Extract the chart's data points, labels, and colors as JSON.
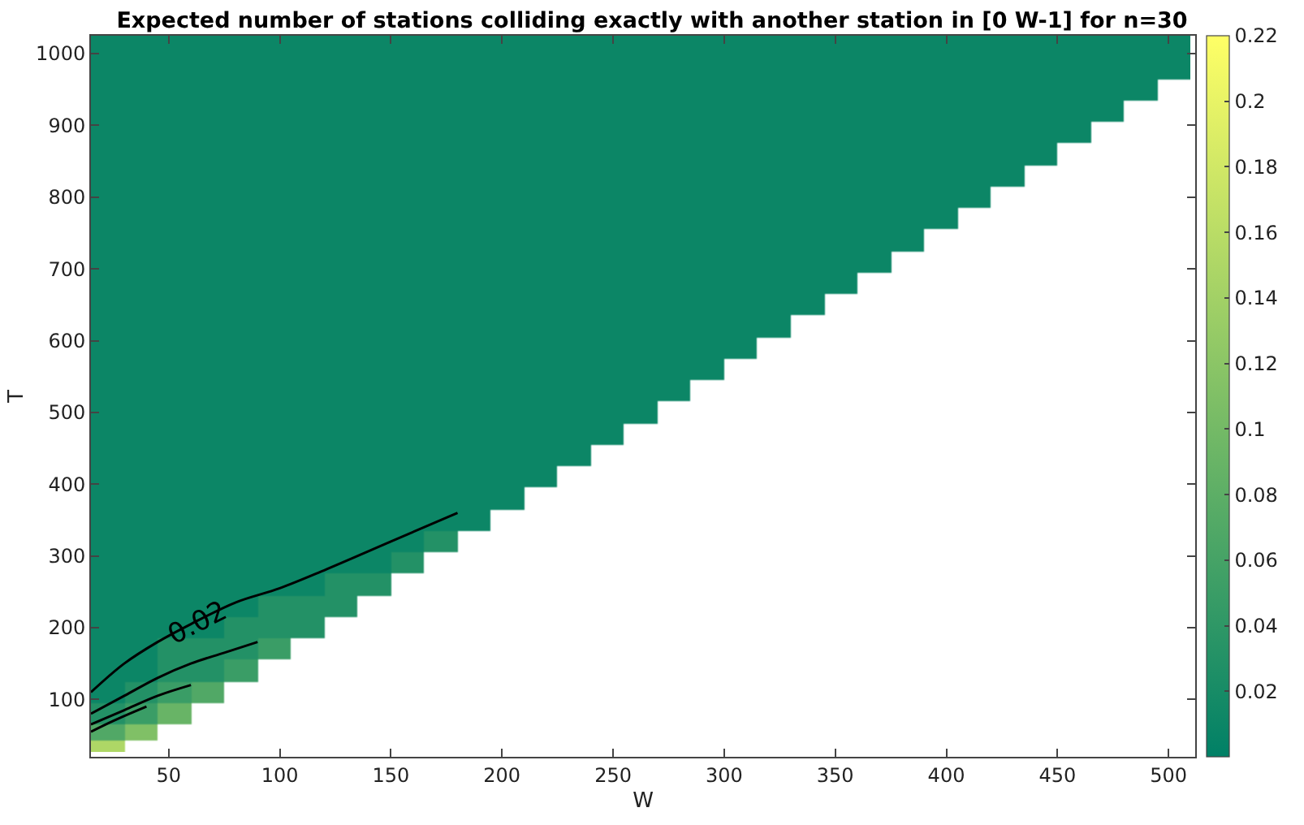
{
  "chart_data": {
    "type": "heatmap",
    "title": "Expected number of stations colliding exactly with another station in [0 W-1] for n=30",
    "xlabel": "W",
    "ylabel": "T",
    "x": [
      22.5,
      37.5,
      52.5,
      67.5,
      82.5,
      97.5,
      112.5,
      127.5,
      142.5,
      157.5,
      172.5,
      187.5,
      202.5,
      217.5,
      232.5,
      247.5,
      262.5,
      277.5,
      292.5,
      307.5,
      322.5,
      337.5,
      352.5,
      367.5,
      382.5,
      397.5,
      412.5,
      427.5,
      442.5,
      457.5,
      472.5,
      487.5,
      502.5
    ],
    "y": [
      1010,
      980,
      950,
      920,
      890,
      860,
      830,
      800,
      770,
      740,
      710,
      680,
      650,
      620,
      590,
      560,
      530,
      500,
      470,
      440,
      410,
      380,
      350,
      320,
      290,
      260,
      230,
      200,
      170,
      140,
      110,
      80,
      50,
      35
    ],
    "cells": [
      [
        0.01,
        0.01,
        0.01,
        0.01,
        0.01,
        0.01,
        0.01,
        0.01,
        0.01,
        0.01,
        0.01,
        0.01,
        0.01,
        0.01,
        0.01,
        0.01,
        0.01,
        0.01,
        0.01,
        0.01,
        0.01,
        0.01,
        0.01,
        0.01,
        0.01,
        0.01,
        0.01,
        0.01,
        0.01,
        0.01,
        0.01,
        0.01,
        0.01
      ],
      [
        0.01,
        0.01,
        0.01,
        0.01,
        0.01,
        0.01,
        0.01,
        0.01,
        0.01,
        0.01,
        0.01,
        0.01,
        0.01,
        0.01,
        0.01,
        0.01,
        0.01,
        0.01,
        0.01,
        0.01,
        0.01,
        0.01,
        0.01,
        0.01,
        0.01,
        0.01,
        0.01,
        0.01,
        0.01,
        0.01,
        0.01,
        0.01,
        0.01
      ],
      [
        0.01,
        0.01,
        0.01,
        0.01,
        0.01,
        0.01,
        0.01,
        0.01,
        0.01,
        0.01,
        0.01,
        0.01,
        0.01,
        0.01,
        0.01,
        0.01,
        0.01,
        0.01,
        0.01,
        0.01,
        0.01,
        0.01,
        0.01,
        0.01,
        0.01,
        0.01,
        0.01,
        0.01,
        0.01,
        0.01,
        0.01,
        0.01,
        null
      ],
      [
        0.01,
        0.01,
        0.01,
        0.01,
        0.01,
        0.01,
        0.01,
        0.01,
        0.01,
        0.01,
        0.01,
        0.01,
        0.01,
        0.01,
        0.01,
        0.01,
        0.01,
        0.01,
        0.01,
        0.01,
        0.01,
        0.01,
        0.01,
        0.01,
        0.01,
        0.01,
        0.01,
        0.01,
        0.01,
        0.01,
        0.01,
        null,
        null
      ],
      [
        0.01,
        0.01,
        0.01,
        0.01,
        0.01,
        0.01,
        0.01,
        0.01,
        0.01,
        0.01,
        0.01,
        0.01,
        0.01,
        0.01,
        0.01,
        0.01,
        0.01,
        0.01,
        0.01,
        0.01,
        0.01,
        0.01,
        0.01,
        0.01,
        0.01,
        0.01,
        0.01,
        0.01,
        0.01,
        0.01,
        null,
        null,
        null
      ],
      [
        0.01,
        0.01,
        0.01,
        0.01,
        0.01,
        0.01,
        0.01,
        0.01,
        0.01,
        0.01,
        0.01,
        0.01,
        0.01,
        0.01,
        0.01,
        0.01,
        0.01,
        0.01,
        0.01,
        0.01,
        0.01,
        0.01,
        0.01,
        0.01,
        0.01,
        0.01,
        0.01,
        0.01,
        0.01,
        null,
        null,
        null,
        null
      ],
      [
        0.01,
        0.01,
        0.01,
        0.01,
        0.01,
        0.01,
        0.01,
        0.01,
        0.01,
        0.01,
        0.01,
        0.01,
        0.01,
        0.01,
        0.01,
        0.01,
        0.01,
        0.01,
        0.01,
        0.01,
        0.01,
        0.01,
        0.01,
        0.01,
        0.01,
        0.01,
        0.01,
        0.01,
        null,
        null,
        null,
        null,
        null
      ],
      [
        0.01,
        0.01,
        0.01,
        0.01,
        0.01,
        0.01,
        0.01,
        0.01,
        0.01,
        0.01,
        0.01,
        0.01,
        0.01,
        0.01,
        0.01,
        0.01,
        0.01,
        0.01,
        0.01,
        0.01,
        0.01,
        0.01,
        0.01,
        0.01,
        0.01,
        0.01,
        0.01,
        null,
        null,
        null,
        null,
        null,
        null
      ],
      [
        0.01,
        0.01,
        0.01,
        0.01,
        0.01,
        0.01,
        0.01,
        0.01,
        0.01,
        0.01,
        0.01,
        0.01,
        0.01,
        0.01,
        0.01,
        0.01,
        0.01,
        0.01,
        0.01,
        0.01,
        0.01,
        0.01,
        0.01,
        0.01,
        0.01,
        0.01,
        null,
        null,
        null,
        null,
        null,
        null,
        null
      ],
      [
        0.01,
        0.01,
        0.01,
        0.01,
        0.01,
        0.01,
        0.01,
        0.01,
        0.01,
        0.01,
        0.01,
        0.01,
        0.01,
        0.01,
        0.01,
        0.01,
        0.01,
        0.01,
        0.01,
        0.01,
        0.01,
        0.01,
        0.01,
        0.01,
        0.01,
        null,
        null,
        null,
        null,
        null,
        null,
        null,
        null
      ],
      [
        0.01,
        0.01,
        0.01,
        0.01,
        0.01,
        0.01,
        0.01,
        0.01,
        0.01,
        0.01,
        0.01,
        0.01,
        0.01,
        0.01,
        0.01,
        0.01,
        0.01,
        0.01,
        0.01,
        0.01,
        0.01,
        0.01,
        0.01,
        0.01,
        null,
        null,
        null,
        null,
        null,
        null,
        null,
        null,
        null
      ],
      [
        0.01,
        0.01,
        0.01,
        0.01,
        0.01,
        0.01,
        0.01,
        0.01,
        0.01,
        0.01,
        0.01,
        0.01,
        0.01,
        0.01,
        0.01,
        0.01,
        0.01,
        0.01,
        0.01,
        0.01,
        0.01,
        0.01,
        0.01,
        null,
        null,
        null,
        null,
        null,
        null,
        null,
        null,
        null,
        null
      ],
      [
        0.01,
        0.01,
        0.01,
        0.01,
        0.01,
        0.01,
        0.01,
        0.01,
        0.01,
        0.01,
        0.01,
        0.01,
        0.01,
        0.01,
        0.01,
        0.01,
        0.01,
        0.01,
        0.01,
        0.01,
        0.01,
        0.01,
        null,
        null,
        null,
        null,
        null,
        null,
        null,
        null,
        null,
        null,
        null
      ],
      [
        0.01,
        0.01,
        0.01,
        0.01,
        0.01,
        0.01,
        0.01,
        0.01,
        0.01,
        0.01,
        0.01,
        0.01,
        0.01,
        0.01,
        0.01,
        0.01,
        0.01,
        0.01,
        0.01,
        0.01,
        0.01,
        null,
        null,
        null,
        null,
        null,
        null,
        null,
        null,
        null,
        null,
        null,
        null
      ],
      [
        0.01,
        0.01,
        0.01,
        0.01,
        0.01,
        0.01,
        0.01,
        0.01,
        0.01,
        0.01,
        0.01,
        0.01,
        0.01,
        0.01,
        0.01,
        0.01,
        0.01,
        0.01,
        0.01,
        0.01,
        null,
        null,
        null,
        null,
        null,
        null,
        null,
        null,
        null,
        null,
        null,
        null,
        null
      ],
      [
        0.01,
        0.01,
        0.01,
        0.01,
        0.01,
        0.01,
        0.01,
        0.01,
        0.01,
        0.01,
        0.01,
        0.01,
        0.01,
        0.01,
        0.01,
        0.01,
        0.01,
        0.01,
        0.01,
        null,
        null,
        null,
        null,
        null,
        null,
        null,
        null,
        null,
        null,
        null,
        null,
        null,
        null
      ],
      [
        0.01,
        0.01,
        0.01,
        0.01,
        0.01,
        0.01,
        0.01,
        0.01,
        0.01,
        0.01,
        0.01,
        0.01,
        0.01,
        0.01,
        0.01,
        0.01,
        0.01,
        0.01,
        null,
        null,
        null,
        null,
        null,
        null,
        null,
        null,
        null,
        null,
        null,
        null,
        null,
        null,
        null
      ],
      [
        0.01,
        0.01,
        0.01,
        0.01,
        0.01,
        0.01,
        0.01,
        0.01,
        0.01,
        0.01,
        0.01,
        0.01,
        0.01,
        0.01,
        0.01,
        0.01,
        0.01,
        null,
        null,
        null,
        null,
        null,
        null,
        null,
        null,
        null,
        null,
        null,
        null,
        null,
        null,
        null,
        null
      ],
      [
        0.01,
        0.01,
        0.01,
        0.01,
        0.01,
        0.01,
        0.01,
        0.01,
        0.01,
        0.01,
        0.01,
        0.01,
        0.01,
        0.01,
        0.01,
        0.01,
        null,
        null,
        null,
        null,
        null,
        null,
        null,
        null,
        null,
        null,
        null,
        null,
        null,
        null,
        null,
        null,
        null
      ],
      [
        0.01,
        0.01,
        0.01,
        0.01,
        0.01,
        0.01,
        0.01,
        0.01,
        0.01,
        0.01,
        0.01,
        0.01,
        0.01,
        0.01,
        0.01,
        null,
        null,
        null,
        null,
        null,
        null,
        null,
        null,
        null,
        null,
        null,
        null,
        null,
        null,
        null,
        null,
        null,
        null
      ],
      [
        0.01,
        0.01,
        0.01,
        0.01,
        0.01,
        0.01,
        0.01,
        0.01,
        0.01,
        0.01,
        0.01,
        0.01,
        0.01,
        0.01,
        null,
        null,
        null,
        null,
        null,
        null,
        null,
        null,
        null,
        null,
        null,
        null,
        null,
        null,
        null,
        null,
        null,
        null,
        null
      ],
      [
        0.01,
        0.01,
        0.01,
        0.01,
        0.01,
        0.01,
        0.01,
        0.01,
        0.01,
        0.01,
        0.01,
        0.01,
        0.01,
        null,
        null,
        null,
        null,
        null,
        null,
        null,
        null,
        null,
        null,
        null,
        null,
        null,
        null,
        null,
        null,
        null,
        null,
        null,
        null
      ],
      [
        0.01,
        0.01,
        0.01,
        0.01,
        0.01,
        0.01,
        0.01,
        0.01,
        0.01,
        0.01,
        0.01,
        0.01,
        null,
        null,
        null,
        null,
        null,
        null,
        null,
        null,
        null,
        null,
        null,
        null,
        null,
        null,
        null,
        null,
        null,
        null,
        null,
        null,
        null
      ],
      [
        0.01,
        0.01,
        0.01,
        0.01,
        0.01,
        0.01,
        0.01,
        0.01,
        0.01,
        0.01,
        0.03,
        null,
        null,
        null,
        null,
        null,
        null,
        null,
        null,
        null,
        null,
        null,
        null,
        null,
        null,
        null,
        null,
        null,
        null,
        null,
        null,
        null,
        null
      ],
      [
        0.01,
        0.01,
        0.01,
        0.01,
        0.01,
        0.01,
        0.01,
        0.01,
        0.01,
        0.03,
        null,
        null,
        null,
        null,
        null,
        null,
        null,
        null,
        null,
        null,
        null,
        null,
        null,
        null,
        null,
        null,
        null,
        null,
        null,
        null,
        null,
        null,
        null
      ],
      [
        0.01,
        0.01,
        0.01,
        0.01,
        0.01,
        0.01,
        0.01,
        0.03,
        0.03,
        null,
        null,
        null,
        null,
        null,
        null,
        null,
        null,
        null,
        null,
        null,
        null,
        null,
        null,
        null,
        null,
        null,
        null,
        null,
        null,
        null,
        null,
        null,
        null
      ],
      [
        0.01,
        0.01,
        0.01,
        0.01,
        0.01,
        0.03,
        0.03,
        0.03,
        null,
        null,
        null,
        null,
        null,
        null,
        null,
        null,
        null,
        null,
        null,
        null,
        null,
        null,
        null,
        null,
        null,
        null,
        null,
        null,
        null,
        null,
        null,
        null,
        null
      ],
      [
        0.01,
        0.01,
        0.01,
        0.01,
        0.03,
        0.03,
        0.03,
        null,
        null,
        null,
        null,
        null,
        null,
        null,
        null,
        null,
        null,
        null,
        null,
        null,
        null,
        null,
        null,
        null,
        null,
        null,
        null,
        null,
        null,
        null,
        null,
        null,
        null
      ],
      [
        0.01,
        0.01,
        0.03,
        0.03,
        0.03,
        0.05,
        null,
        null,
        null,
        null,
        null,
        null,
        null,
        null,
        null,
        null,
        null,
        null,
        null,
        null,
        null,
        null,
        null,
        null,
        null,
        null,
        null,
        null,
        null,
        null,
        null,
        null,
        null
      ],
      [
        0.01,
        0.01,
        0.03,
        0.03,
        0.05,
        null,
        null,
        null,
        null,
        null,
        null,
        null,
        null,
        null,
        null,
        null,
        null,
        null,
        null,
        null,
        null,
        null,
        null,
        null,
        null,
        null,
        null,
        null,
        null,
        null,
        null,
        null,
        null
      ],
      [
        0.01,
        0.03,
        0.05,
        0.07,
        null,
        null,
        null,
        null,
        null,
        null,
        null,
        null,
        null,
        null,
        null,
        null,
        null,
        null,
        null,
        null,
        null,
        null,
        null,
        null,
        null,
        null,
        null,
        null,
        null,
        null,
        null,
        null,
        null
      ],
      [
        0.03,
        0.05,
        0.09,
        null,
        null,
        null,
        null,
        null,
        null,
        null,
        null,
        null,
        null,
        null,
        null,
        null,
        null,
        null,
        null,
        null,
        null,
        null,
        null,
        null,
        null,
        null,
        null,
        null,
        null,
        null,
        null,
        null,
        null
      ],
      [
        0.07,
        0.11,
        null,
        null,
        null,
        null,
        null,
        null,
        null,
        null,
        null,
        null,
        null,
        null,
        null,
        null,
        null,
        null,
        null,
        null,
        null,
        null,
        null,
        null,
        null,
        null,
        null,
        null,
        null,
        null,
        null,
        null,
        null
      ],
      [
        0.15,
        null,
        null,
        null,
        null,
        null,
        null,
        null,
        null,
        null,
        null,
        null,
        null,
        null,
        null,
        null,
        null,
        null,
        null,
        null,
        null,
        null,
        null,
        null,
        null,
        null,
        null,
        null,
        null,
        null,
        null,
        null,
        null
      ]
    ],
    "series": [
      {
        "type": "line",
        "color": "#000000",
        "x": [
          15,
          30,
          45,
          60,
          80,
          100,
          120,
          150,
          180
        ],
        "values": [
          110,
          150,
          180,
          205,
          235,
          255,
          280,
          320,
          360
        ]
      },
      {
        "type": "line",
        "color": "#000000",
        "x": [
          15,
          30,
          45,
          60,
          75,
          90
        ],
        "values": [
          80,
          105,
          130,
          150,
          165,
          180
        ]
      },
      {
        "type": "line",
        "color": "#000000",
        "x": [
          15,
          30,
          45,
          60
        ],
        "values": [
          65,
          85,
          105,
          120
        ]
      },
      {
        "type": "line",
        "color": "#000000",
        "x": [
          15,
          25,
          40
        ],
        "values": [
          55,
          70,
          90
        ]
      }
    ],
    "annotations": [
      {
        "text": "0.02",
        "x": 63,
        "y": 205
      }
    ],
    "xlim": [
      15,
      512
    ],
    "xticks": [
      50,
      100,
      150,
      200,
      250,
      300,
      350,
      400,
      450,
      500
    ],
    "ylim": [
      20,
      1025
    ],
    "yticks": [
      100,
      200,
      300,
      400,
      500,
      600,
      700,
      800,
      900,
      1000
    ],
    "clim": [
      0,
      0.22
    ],
    "cticks": [
      0.02,
      0.04,
      0.06,
      0.08,
      0.1,
      0.12,
      0.14,
      0.16,
      0.18,
      0.2,
      0.22
    ],
    "grid": false
  }
}
